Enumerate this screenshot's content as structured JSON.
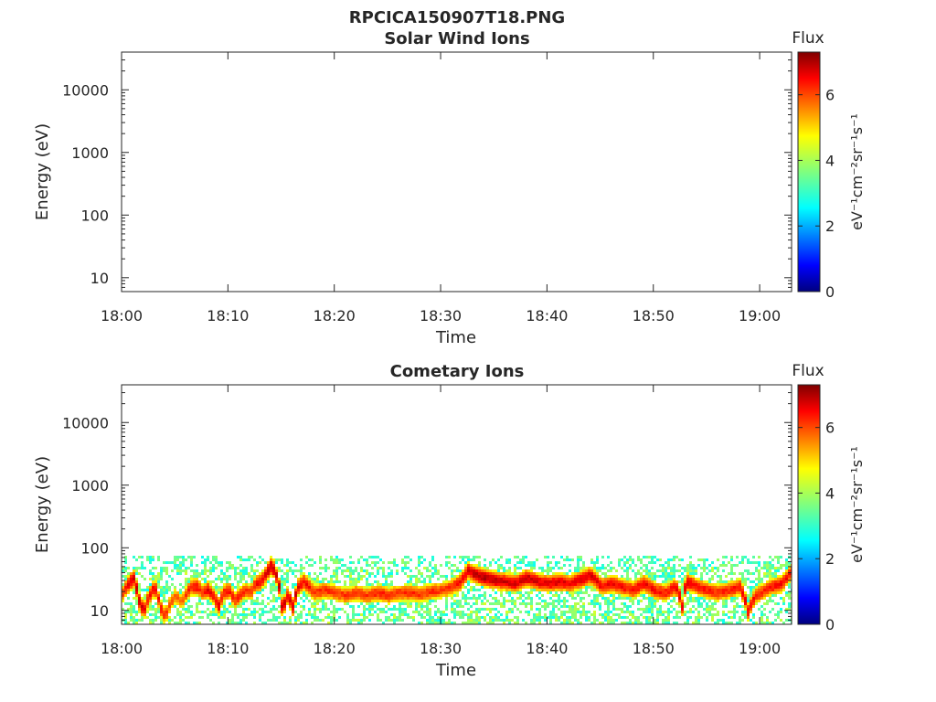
{
  "figure_title": "RPCICA150907T18.PNG",
  "panels_meta": {
    "colorbar_title": "Flux",
    "colorbar_label": "eV⁻¹cm⁻²sr⁻¹s⁻¹",
    "colorbar_ticks": [
      "0",
      "2",
      "4",
      "6"
    ]
  },
  "chart_data": [
    {
      "type": "heatmap",
      "title": "Solar Wind Ions",
      "xlabel": "Time",
      "ylabel": "Energy (eV)",
      "x_ticks": [
        "18:00",
        "18:10",
        "18:20",
        "18:30",
        "18:40",
        "18:50",
        "19:00"
      ],
      "y_ticks": [
        "10",
        "100",
        "1000",
        "10000"
      ],
      "y_scale": "log",
      "x_range_minutes": [
        0,
        63
      ],
      "y_range_eV": [
        6,
        40000
      ],
      "colorbar": {
        "label": "Flux",
        "range": [
          0,
          7.3
        ],
        "colormap": "jet"
      },
      "data_present": false,
      "ridge": []
    },
    {
      "type": "heatmap",
      "title": "Cometary Ions",
      "xlabel": "Time",
      "ylabel": "Energy (eV)",
      "x_ticks": [
        "18:00",
        "18:10",
        "18:20",
        "18:30",
        "18:40",
        "18:50",
        "19:00"
      ],
      "y_ticks": [
        "10",
        "100",
        "1000",
        "10000"
      ],
      "y_scale": "log",
      "x_range_minutes": [
        0,
        63
      ],
      "y_range_eV": [
        6,
        40000
      ],
      "colorbar": {
        "label": "Flux",
        "range": [
          0,
          7.3
        ],
        "colormap": "jet"
      },
      "data_present": true,
      "noise_ceiling_eV": 80,
      "ridge": [
        [
          0,
          20,
          6.0
        ],
        [
          0.6,
          28,
          6.6
        ],
        [
          1.0,
          35,
          6.8
        ],
        [
          1.5,
          15,
          6.8
        ],
        [
          2.0,
          10,
          6.5
        ],
        [
          2.5,
          18,
          6.3
        ],
        [
          3.0,
          25,
          6.5
        ],
        [
          3.5,
          12,
          6.3
        ],
        [
          4.0,
          8,
          6.0
        ],
        [
          4.5,
          14,
          5.8
        ],
        [
          5.0,
          18,
          5.6
        ],
        [
          5.5,
          14,
          5.6
        ],
        [
          6.0,
          20,
          6.0
        ],
        [
          6.5,
          25,
          6.3
        ],
        [
          7.0,
          25,
          6.4
        ],
        [
          7.5,
          20,
          6.0
        ],
        [
          8.0,
          22,
          6.5
        ],
        [
          8.5,
          18,
          6.2
        ],
        [
          9.0,
          12,
          6.6
        ],
        [
          9.5,
          20,
          6.2
        ],
        [
          10.0,
          22,
          6.3
        ],
        [
          10.5,
          15,
          6.0
        ],
        [
          11.0,
          18,
          6.2
        ],
        [
          11.5,
          22,
          6.0
        ],
        [
          12.0,
          20,
          6.0
        ],
        [
          12.5,
          28,
          6.3
        ],
        [
          13.0,
          30,
          6.5
        ],
        [
          13.5,
          40,
          6.6
        ],
        [
          14.0,
          55,
          6.9
        ],
        [
          14.5,
          35,
          6.6
        ],
        [
          15.0,
          10,
          6.8
        ],
        [
          15.5,
          18,
          6.5
        ],
        [
          16.0,
          12,
          6.8
        ],
        [
          16.5,
          25,
          6.5
        ],
        [
          17.0,
          30,
          6.3
        ],
        [
          17.5,
          25,
          6.3
        ],
        [
          18.0,
          20,
          6.0
        ],
        [
          19.0,
          22,
          6.1
        ],
        [
          20.0,
          20,
          6.0
        ],
        [
          21.0,
          18,
          6.0
        ],
        [
          22.0,
          20,
          6.1
        ],
        [
          23.0,
          18,
          6.0
        ],
        [
          24.0,
          20,
          6.2
        ],
        [
          25.0,
          18,
          6.1
        ],
        [
          26.0,
          20,
          6.0
        ],
        [
          27.0,
          20,
          6.1
        ],
        [
          28.0,
          19,
          6.0
        ],
        [
          29.0,
          21,
          6.1
        ],
        [
          30.0,
          22,
          6.0
        ],
        [
          31.0,
          25,
          6.2
        ],
        [
          31.8,
          30,
          6.4
        ],
        [
          32.5,
          45,
          6.6
        ],
        [
          33.0,
          40,
          6.8
        ],
        [
          34.0,
          35,
          6.9
        ],
        [
          35.0,
          32,
          6.8
        ],
        [
          36.0,
          30,
          6.7
        ],
        [
          37.0,
          28,
          6.6
        ],
        [
          38.0,
          35,
          6.8
        ],
        [
          39.0,
          30,
          6.6
        ],
        [
          40.0,
          28,
          6.5
        ],
        [
          41.0,
          30,
          6.6
        ],
        [
          42.0,
          28,
          6.5
        ],
        [
          43.0,
          32,
          6.6
        ],
        [
          44.0,
          38,
          6.6
        ],
        [
          45.0,
          25,
          6.4
        ],
        [
          46.0,
          28,
          6.5
        ],
        [
          47.0,
          25,
          6.3
        ],
        [
          48.0,
          22,
          6.3
        ],
        [
          49.0,
          28,
          6.5
        ],
        [
          50.0,
          22,
          6.3
        ],
        [
          51.0,
          20,
          6.2
        ],
        [
          52.0,
          25,
          6.4
        ],
        [
          52.6,
          12,
          6.6
        ],
        [
          53.0,
          30,
          6.6
        ],
        [
          54.0,
          25,
          6.3
        ],
        [
          55.0,
          22,
          6.2
        ],
        [
          56.0,
          20,
          6.1
        ],
        [
          57.0,
          22,
          6.2
        ],
        [
          58.0,
          25,
          6.3
        ],
        [
          58.8,
          10,
          6.5
        ],
        [
          59.5,
          18,
          6.2
        ],
        [
          60.0,
          20,
          6.1
        ],
        [
          61.0,
          25,
          6.3
        ],
        [
          62.0,
          28,
          6.4
        ],
        [
          63.0,
          45,
          6.3
        ]
      ]
    }
  ]
}
